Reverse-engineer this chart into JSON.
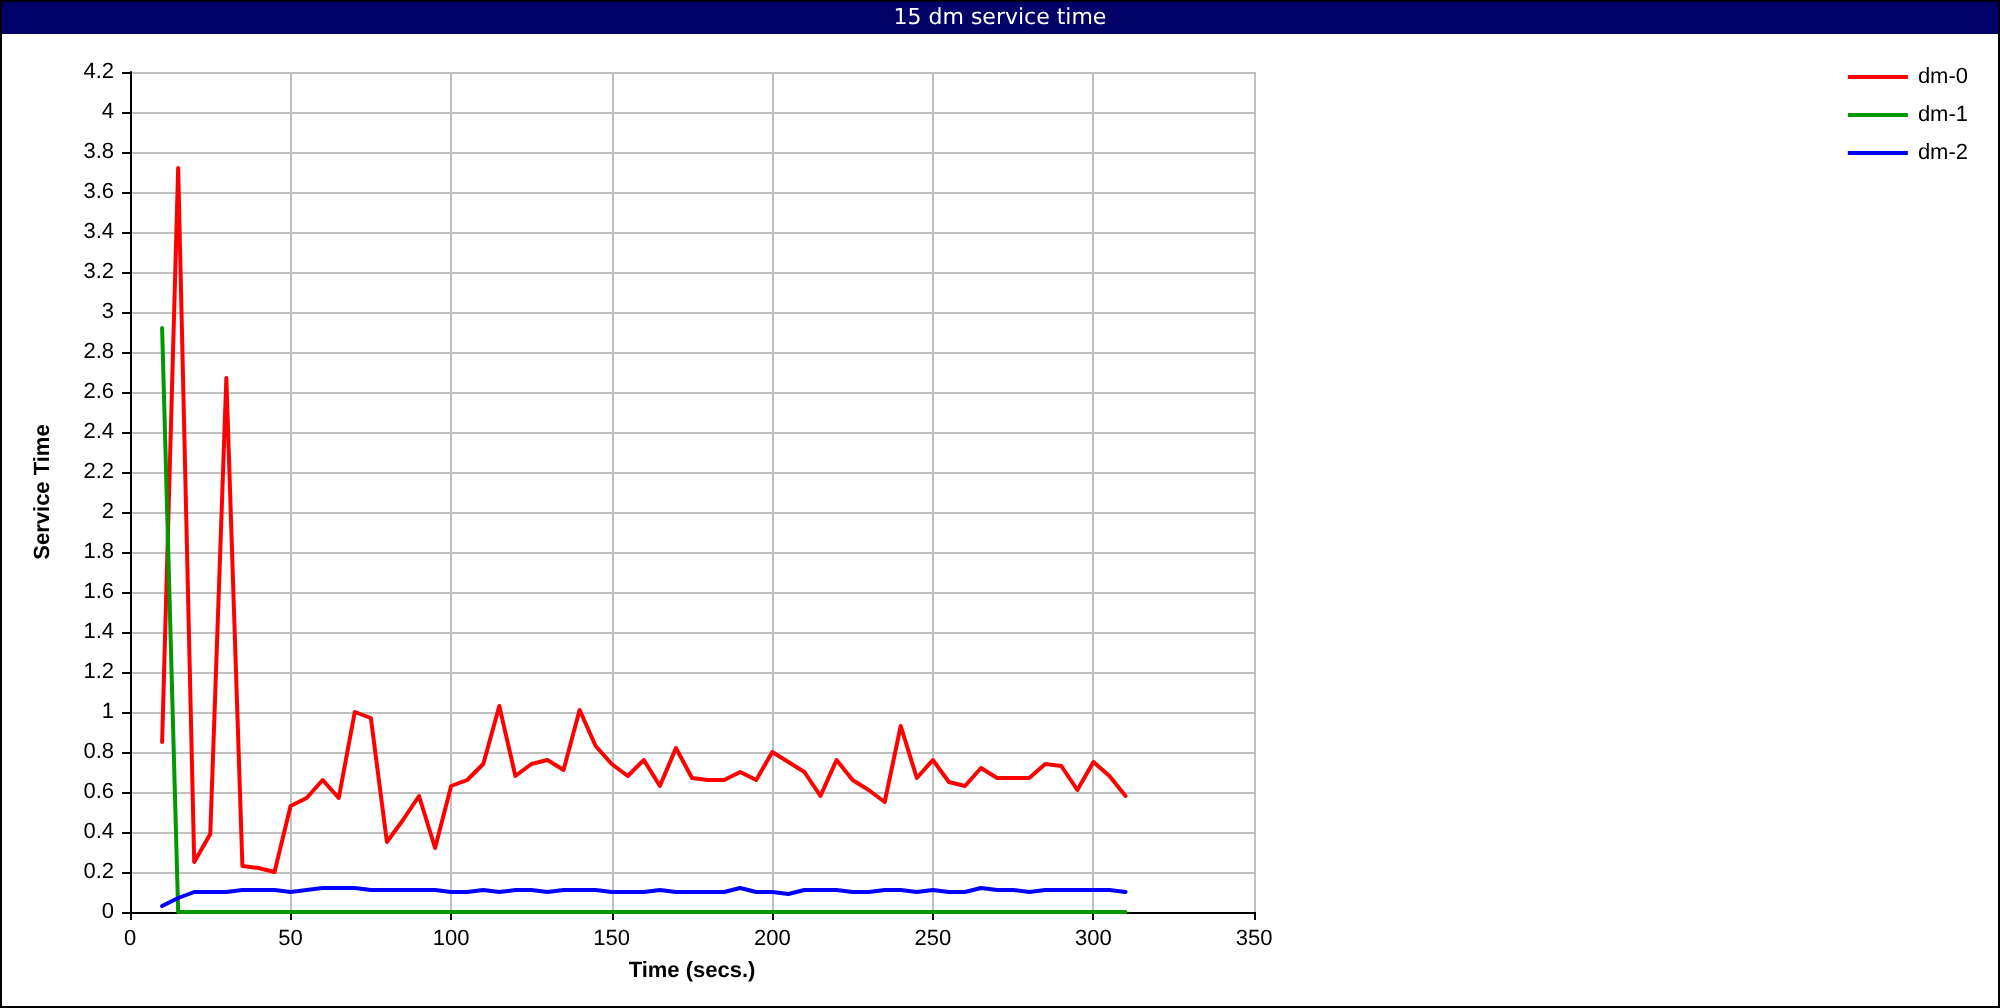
{
  "chart_data": {
    "type": "line",
    "title": "15 dm service time",
    "xlabel": "Time (secs.)",
    "ylabel": "Service Time",
    "x": [
      10,
      15,
      20,
      25,
      30,
      35,
      40,
      45,
      50,
      55,
      60,
      65,
      70,
      75,
      80,
      85,
      90,
      95,
      100,
      105,
      110,
      115,
      120,
      125,
      130,
      135,
      140,
      145,
      150,
      155,
      160,
      165,
      170,
      175,
      180,
      185,
      190,
      195,
      200,
      205,
      210,
      215,
      220,
      225,
      230,
      235,
      240,
      245,
      250,
      255,
      260,
      265,
      270,
      275,
      280,
      285,
      290,
      295,
      300,
      305,
      310
    ],
    "series": [
      {
        "name": "dm-0",
        "color": "#ff0000",
        "values": [
          0.85,
          3.72,
          0.25,
          0.39,
          2.67,
          0.23,
          0.22,
          0.2,
          0.53,
          0.57,
          0.66,
          0.57,
          1.0,
          0.97,
          0.35,
          0.46,
          0.58,
          0.32,
          0.63,
          0.66,
          0.74,
          1.03,
          0.68,
          0.74,
          0.76,
          0.71,
          1.01,
          0.83,
          0.74,
          0.68,
          0.76,
          0.63,
          0.82,
          0.67,
          0.66,
          0.66,
          0.7,
          0.66,
          0.8,
          0.75,
          0.7,
          0.58,
          0.76,
          0.66,
          0.61,
          0.55,
          0.93,
          0.67,
          0.76,
          0.65,
          0.63,
          0.72,
          0.67,
          0.67,
          0.67,
          0.74,
          0.73,
          0.61,
          0.75,
          0.68,
          0.58
        ]
      },
      {
        "name": "dm-1",
        "color": "#009900",
        "values": [
          2.92,
          0,
          0,
          0,
          0,
          0,
          0,
          0,
          0,
          0,
          0,
          0,
          0,
          0,
          0,
          0,
          0,
          0,
          0,
          0,
          0,
          0,
          0,
          0,
          0,
          0,
          0,
          0,
          0,
          0,
          0,
          0,
          0,
          0,
          0,
          0,
          0,
          0,
          0,
          0,
          0,
          0,
          0,
          0,
          0,
          0,
          0,
          0,
          0,
          0,
          0,
          0,
          0,
          0,
          0,
          0,
          0,
          0,
          0,
          0,
          0
        ]
      },
      {
        "name": "dm-2",
        "color": "#0000ff",
        "values": [
          0.03,
          0.07,
          0.1,
          0.1,
          0.1,
          0.11,
          0.11,
          0.11,
          0.1,
          0.11,
          0.12,
          0.12,
          0.12,
          0.11,
          0.11,
          0.11,
          0.11,
          0.11,
          0.1,
          0.1,
          0.11,
          0.1,
          0.11,
          0.11,
          0.1,
          0.11,
          0.11,
          0.11,
          0.1,
          0.1,
          0.1,
          0.11,
          0.1,
          0.1,
          0.1,
          0.1,
          0.12,
          0.1,
          0.1,
          0.09,
          0.11,
          0.11,
          0.11,
          0.1,
          0.1,
          0.11,
          0.11,
          0.1,
          0.11,
          0.1,
          0.1,
          0.12,
          0.11,
          0.11,
          0.1,
          0.11,
          0.11,
          0.11,
          0.11,
          0.11,
          0.1
        ]
      }
    ],
    "xlim": [
      0,
      350
    ],
    "xticks": [
      0,
      50,
      100,
      150,
      200,
      250,
      300,
      350
    ],
    "ylim": [
      0,
      4.2
    ],
    "yticks": [
      0,
      0.2,
      0.4,
      0.6,
      0.8,
      1,
      1.2,
      1.4,
      1.6,
      1.8,
      2,
      2.2,
      2.4,
      2.6,
      2.8,
      3,
      3.2,
      3.4,
      3.6,
      3.8,
      4,
      4.2
    ],
    "grid": true,
    "legend": "top right",
    "marker": "none",
    "line_style": "solid"
  }
}
